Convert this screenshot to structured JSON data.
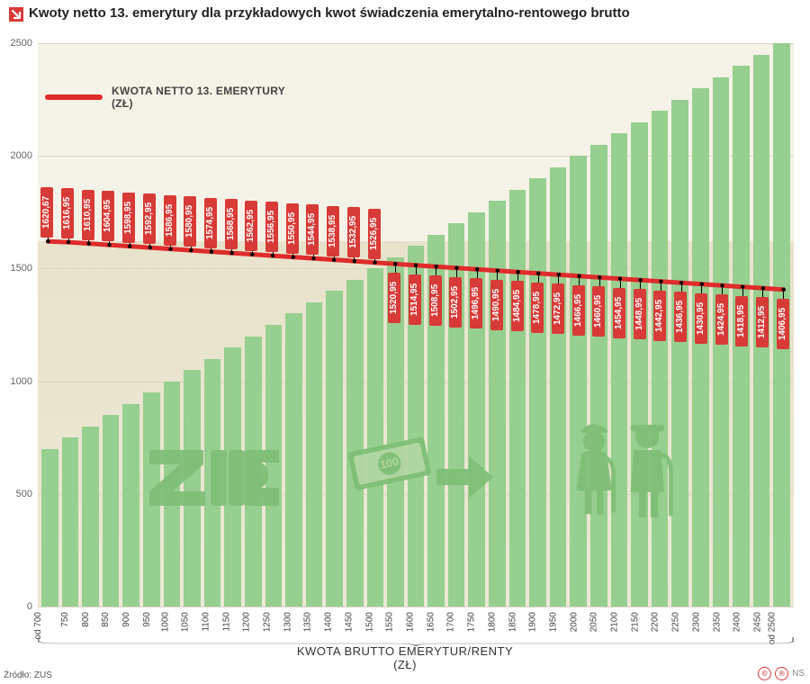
{
  "colors": {
    "bg": "#ffffff",
    "plot_bg": "#f5f2e7",
    "bar": "#96cf8f",
    "bar_overlay": "#b1d7a1",
    "grid": "#d9d6c6",
    "line": "#df2b2b",
    "callout_bg": "#d83a37",
    "callout_text": "#ffffff",
    "text": "#333333",
    "arrow": "#d83a37",
    "icon": "#7fbf77",
    "footer_badge": "#d83a37"
  },
  "typography": {
    "title_fontsize": 15,
    "title_weight": "700",
    "legend_fontsize": 12,
    "ytick_fontsize": 11,
    "xtick_fontsize": 10,
    "callout_fontsize": 10,
    "xaxis_label_fontsize": 13,
    "source_fontsize": 10
  },
  "title": "Kwoty netto 13. emerytury dla przykładowych kwot świadczenia emerytalno-rentowego brutto",
  "legend_label_line1": "KWOTA NETTO 13. EMERYTURY",
  "legend_label_line2": "(ZŁ)",
  "xaxis_label_line1": "KWOTA BRUTTO EMERYTUR/RENTY",
  "xaxis_label_line2": "(ZŁ)",
  "source": "Źródło: ZUS",
  "footer_initials": "NS",
  "chart": {
    "type": "bar+line",
    "ylim": [
      0,
      2500
    ],
    "ytick_step": 500,
    "yticks": [
      0,
      500,
      1000,
      1500,
      2000,
      2500
    ],
    "bar_width_ratio": 0.7,
    "line_width": 5,
    "x_labels": [
      "od 700",
      "750",
      "800",
      "850",
      "900",
      "950",
      "1000",
      "1050",
      "1100",
      "1150",
      "1200",
      "1250",
      "1300",
      "1350",
      "1400",
      "1450",
      "1500",
      "1550",
      "1600",
      "1650",
      "1700",
      "1750",
      "1800",
      "1850",
      "1900",
      "1950",
      "2000",
      "2050",
      "2100",
      "2150",
      "2200",
      "2250",
      "2300",
      "2350",
      "2400",
      "2450",
      "od 2500"
    ],
    "bar_values": [
      700,
      750,
      800,
      850,
      900,
      950,
      1000,
      1050,
      1100,
      1150,
      1200,
      1250,
      1300,
      1350,
      1400,
      1450,
      1500,
      1550,
      1600,
      1650,
      1700,
      1750,
      1800,
      1850,
      1900,
      1950,
      2000,
      2050,
      2100,
      2150,
      2200,
      2250,
      2300,
      2350,
      2400,
      2450,
      2500
    ],
    "line_values": [
      1620.67,
      1616.95,
      1610.95,
      1604.95,
      1598.95,
      1592.95,
      1586.95,
      1580.95,
      1574.95,
      1568.95,
      1562.95,
      1556.95,
      1550.95,
      1544.95,
      1538.95,
      1532.95,
      1526.95,
      1520.95,
      1514.95,
      1508.95,
      1502.95,
      1496.95,
      1490.95,
      1484.95,
      1478.95,
      1472.95,
      1466.95,
      1460.95,
      1454.95,
      1448.95,
      1442.95,
      1436.95,
      1430.95,
      1424.95,
      1418.95,
      1412.95,
      1406.95
    ],
    "callout_split_index": 17,
    "callout_box_height": 50,
    "connector_length": 10
  },
  "watermark": {
    "zus_label": "ZUS",
    "banknote_label": "100"
  }
}
